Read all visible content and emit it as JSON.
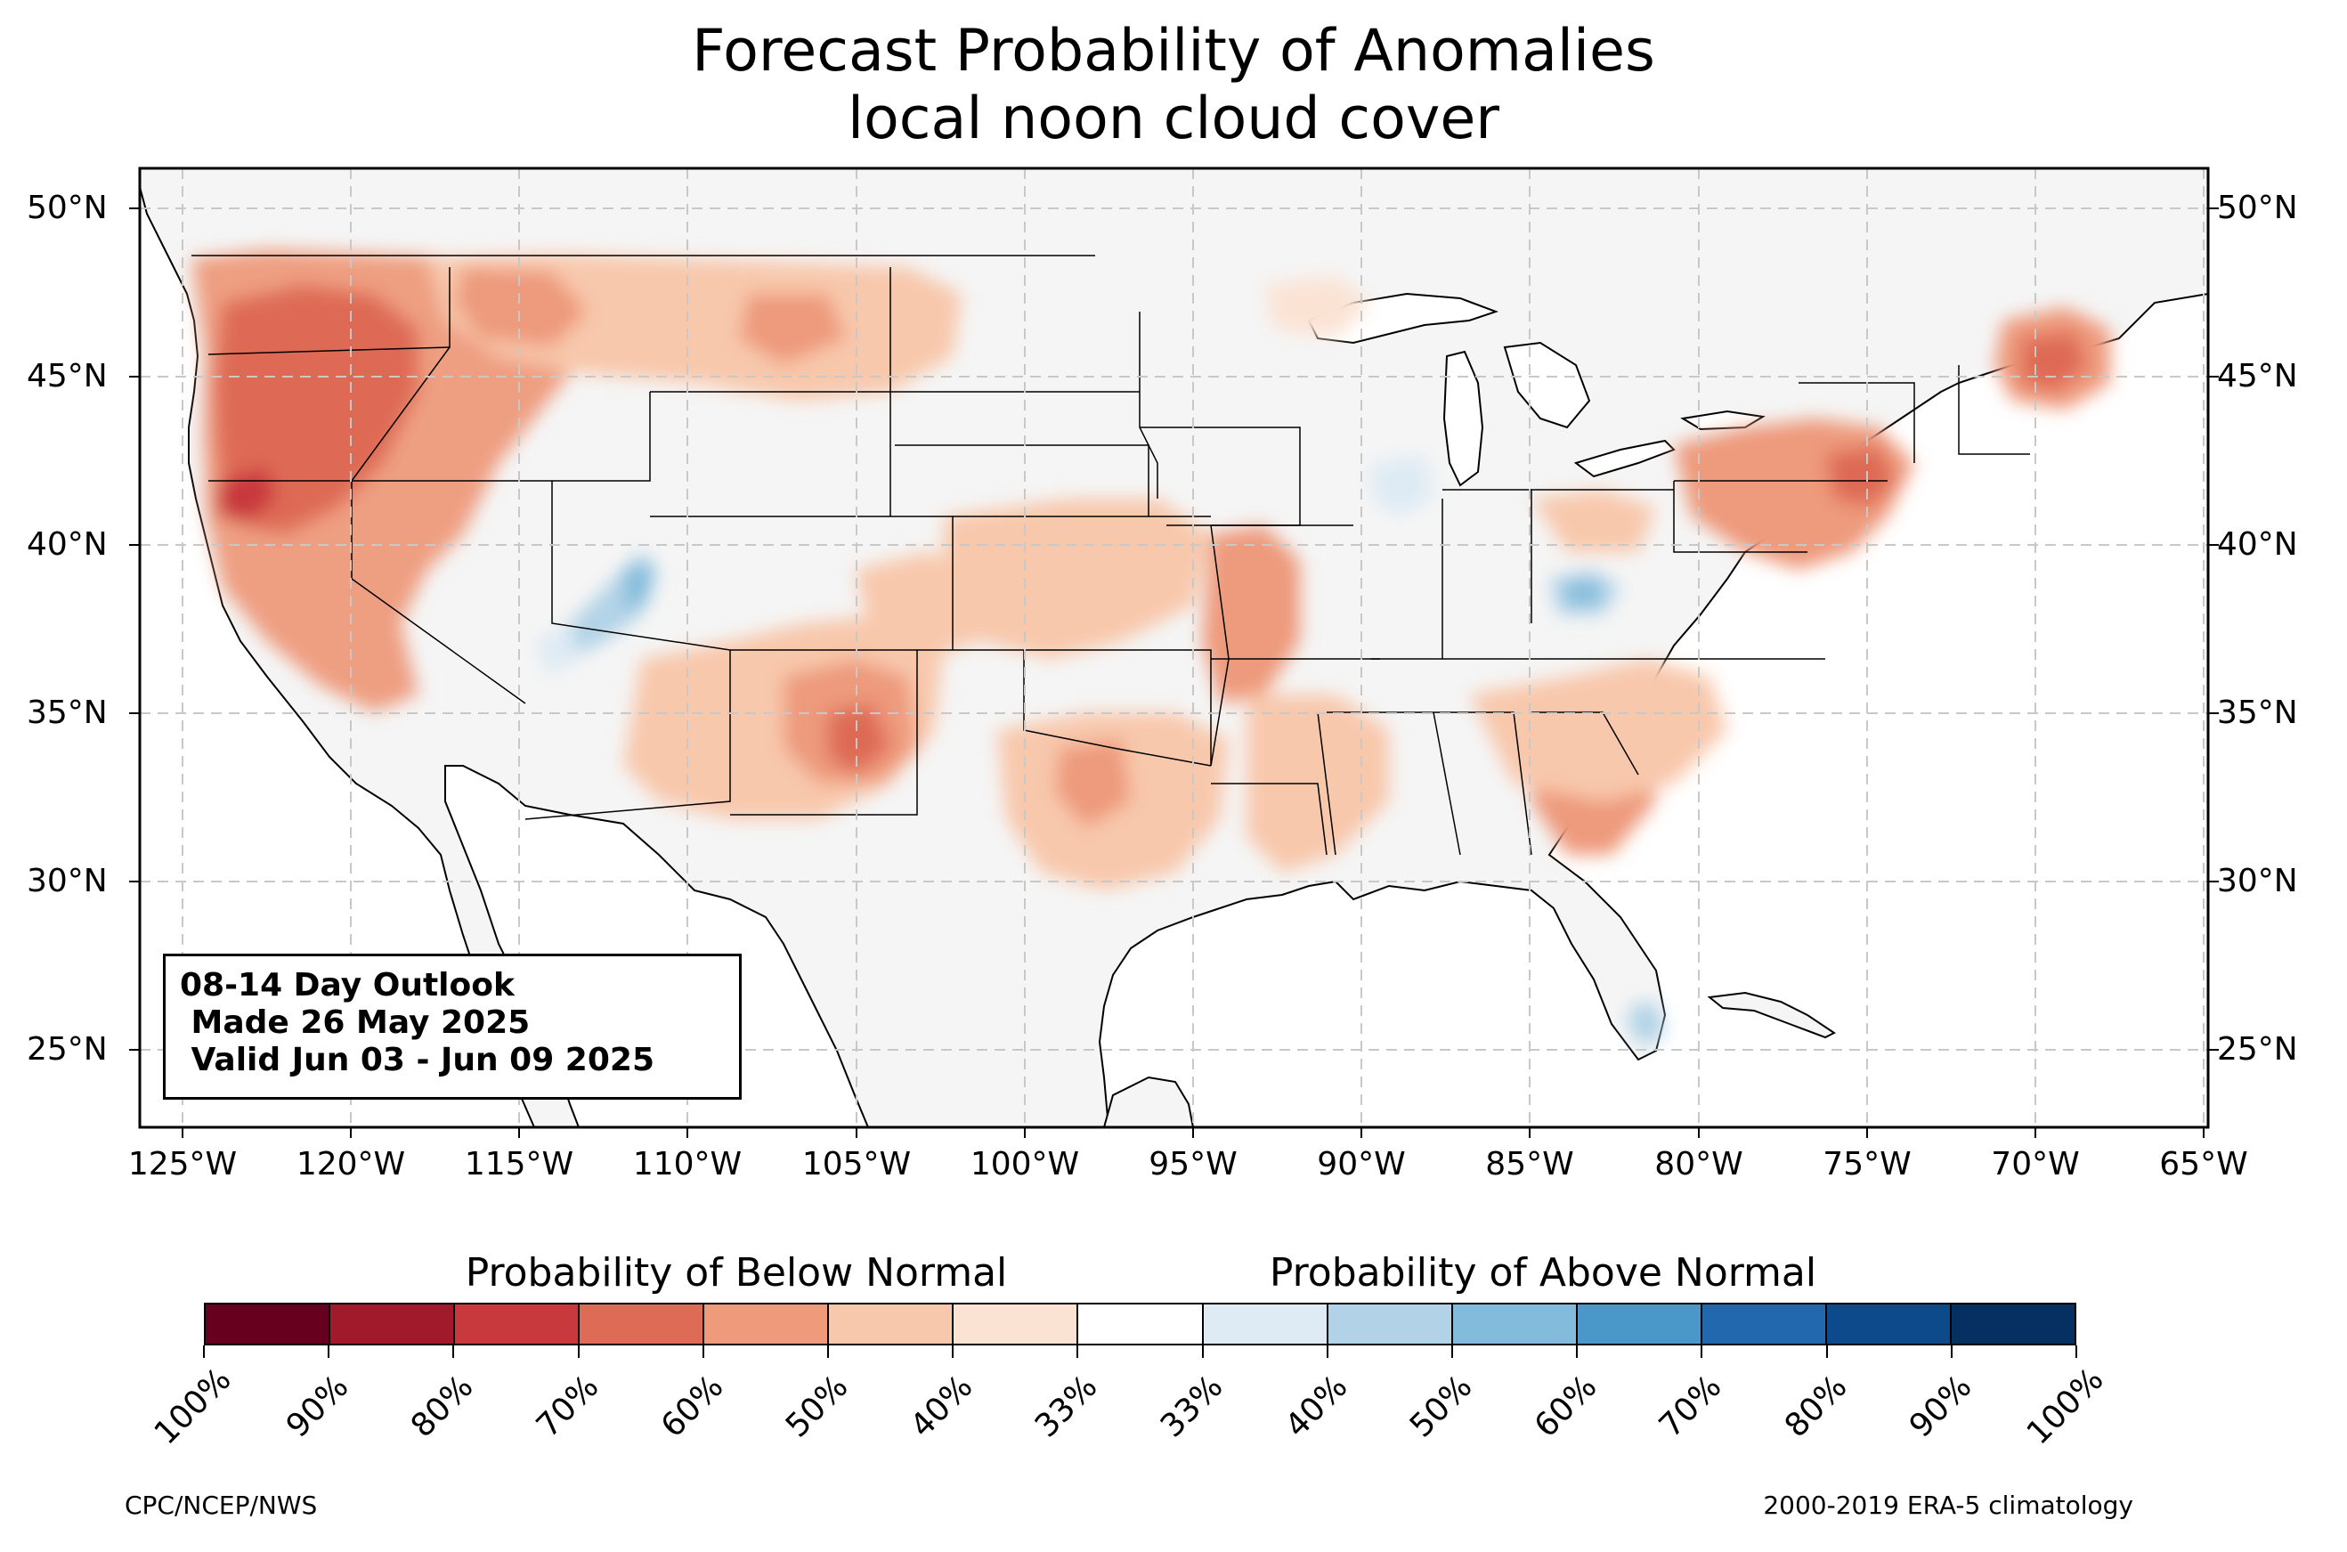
{
  "title": {
    "line1": "Forecast Probability of Anomalies",
    "line2": "local noon cloud cover"
  },
  "map": {
    "projection": "plate-carree",
    "extent_lon": [
      -126.3,
      -64.9
    ],
    "extent_lat": [
      22.8,
      51.3
    ],
    "lat_labels": [
      "50°N",
      "45°N",
      "40°N",
      "35°N",
      "30°N",
      "25°N"
    ],
    "lon_labels": [
      "125°W",
      "120°W",
      "115°W",
      "110°W",
      "105°W",
      "100°W",
      "95°W",
      "90°W",
      "85°W",
      "80°W",
      "75°W",
      "70°W",
      "65°W"
    ],
    "land_color": "#f5f5f5",
    "gridlines": "dashed",
    "below_normal_regions": [
      {
        "name": "Pacific Northwest / Northern California",
        "lon": -120.5,
        "lat": 43.5,
        "prob": 60
      },
      {
        "name": "Northern California core",
        "lon": -123.0,
        "lat": 41.8,
        "prob": 70
      },
      {
        "name": "Northern Rockies / Montana",
        "lon": -108.0,
        "lat": 47.0,
        "prob": 50
      },
      {
        "name": "New Mexico",
        "lon": -105.5,
        "lat": 34.5,
        "prob": 60
      },
      {
        "name": "Southern Plains / Texas",
        "lon": -98.0,
        "lat": 32.0,
        "prob": 40
      },
      {
        "name": "Missouri / Arkansas",
        "lon": -93.5,
        "lat": 37.5,
        "prob": 50
      },
      {
        "name": "Georgia / Carolinas",
        "lon": -82.5,
        "lat": 32.8,
        "prob": 50
      },
      {
        "name": "Pennsylvania / New York",
        "lon": -76.0,
        "lat": 41.8,
        "prob": 50
      },
      {
        "name": "Maine",
        "lon": -69.5,
        "lat": 45.5,
        "prob": 60
      }
    ],
    "above_normal_regions": [
      {
        "name": "Utah",
        "lon": -111.5,
        "lat": 39.5,
        "prob": 40
      },
      {
        "name": "Ohio / Kentucky",
        "lon": -83.5,
        "lat": 38.8,
        "prob": 50
      },
      {
        "name": "Iowa / Illinois",
        "lon": -89.0,
        "lat": 41.5,
        "prob": 40
      },
      {
        "name": "South Florida",
        "lon": -80.8,
        "lat": 25.5,
        "prob": 40
      }
    ]
  },
  "infobox": {
    "line1": "08-14 Day Outlook",
    "line2": " Made 26 May 2025",
    "line3": " Valid Jun 03 - Jun 09 2025"
  },
  "colorbar": {
    "below_title": "Probability of Below Normal",
    "above_title": "Probability of Above Normal",
    "colors": [
      "#67001f",
      "#a11a2b",
      "#c8393e",
      "#de6b55",
      "#ee9a7b",
      "#f8c8ac",
      "#fbe3d4",
      "#ffffff",
      "#deebf4",
      "#b2d3e7",
      "#82bbdb",
      "#4a97c9",
      "#2268ae",
      "#0d4a8c",
      "#053061"
    ],
    "tick_labels": [
      "100%",
      "90%",
      "80%",
      "70%",
      "60%",
      "50%",
      "40%",
      "33%",
      "33%",
      "40%",
      "50%",
      "60%",
      "70%",
      "80%",
      "90%",
      "100%"
    ]
  },
  "credits": {
    "left": "CPC/NCEP/NWS",
    "right": "2000-2019 ERA-5 climatology"
  }
}
